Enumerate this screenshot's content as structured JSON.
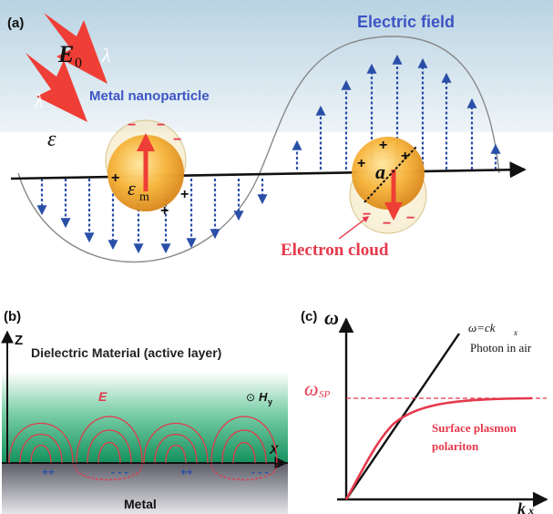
{
  "panel_a": {
    "label": "(a)",
    "e0_symbol": "E",
    "e0_subscript": "0",
    "wavelength_symbol": "λ",
    "nanoparticle_label": "Metal nanoparticle",
    "field_label": "Electric field",
    "permittivity_symbol": "ε",
    "particle_permittivity_symbol": "ε",
    "particle_permittivity_subscript": "m",
    "radius_symbol": "a",
    "electron_cloud_label": "Electron cloud",
    "plus_sign": "+",
    "minus_sign": "−",
    "colors": {
      "sky": "#c9dde8",
      "field_line": "#2a4fa8",
      "label_blue": "#3d55c4",
      "label_red": "#e5384b",
      "arrow_red": "#ef3e36",
      "particle": "#f2a62a",
      "axis": "#111111"
    }
  },
  "panel_b": {
    "label": "(b)",
    "z_axis": "Z",
    "x_axis": "X",
    "dielectric_label": "Dielectric Material (active layer)",
    "field_label": "E",
    "magnetic_symbol": "⊙",
    "magnetic_label": "H",
    "magnetic_subscript": "y",
    "charge_plus": "++",
    "charge_minus": "- - -",
    "metal_label": "Metal",
    "colors": {
      "dielectric": "#1f9a6a",
      "metal": "#5a5a66",
      "field": "#e5384b"
    }
  },
  "panel_c": {
    "label": "(c)",
    "y_axis": "ω",
    "x_axis": "k",
    "x_subscript": "x",
    "light_line_label": "ω=ck",
    "light_line_subscript": "x",
    "photon_label": "Photon in air",
    "wsp_symbol": "ω",
    "wsp_subscript": "SP",
    "spp_label_line1": "Surface plasmon",
    "spp_label_line2": "polariton",
    "colors": {
      "curve": "#e5384b",
      "line": "#000000"
    }
  }
}
